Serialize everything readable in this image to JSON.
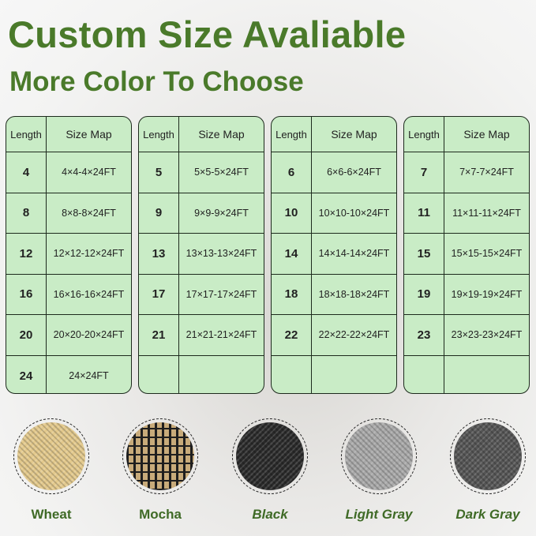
{
  "header": {
    "title": "Custom Size Avaliable",
    "subtitle": "More Color To Choose"
  },
  "table_headers": {
    "length": "Length",
    "size_map": "Size Map"
  },
  "tables": [
    {
      "rows": [
        {
          "length": "4",
          "size": "4×4-4×24FT"
        },
        {
          "length": "8",
          "size": "8×8-8×24FT"
        },
        {
          "length": "12",
          "size": "12×12-12×24FT"
        },
        {
          "length": "16",
          "size": "16×16-16×24FT"
        },
        {
          "length": "20",
          "size": "20×20-20×24FT"
        },
        {
          "length": "24",
          "size": "24×24FT"
        }
      ]
    },
    {
      "rows": [
        {
          "length": "5",
          "size": "5×5-5×24FT"
        },
        {
          "length": "9",
          "size": "9×9-9×24FT"
        },
        {
          "length": "13",
          "size": "13×13-13×24FT"
        },
        {
          "length": "17",
          "size": "17×17-17×24FT"
        },
        {
          "length": "21",
          "size": "21×21-21×24FT"
        },
        {
          "length": "",
          "size": ""
        }
      ]
    },
    {
      "rows": [
        {
          "length": "6",
          "size": "6×6-6×24FT"
        },
        {
          "length": "10",
          "size": "10×10-10×24FT"
        },
        {
          "length": "14",
          "size": "14×14-14×24FT"
        },
        {
          "length": "18",
          "size": "18×18-18×24FT"
        },
        {
          "length": "22",
          "size": "22×22-22×24FT"
        },
        {
          "length": "",
          "size": ""
        }
      ]
    },
    {
      "rows": [
        {
          "length": "7",
          "size": "7×7-7×24FT"
        },
        {
          "length": "11",
          "size": "11×11-11×24FT"
        },
        {
          "length": "15",
          "size": "15×15-15×24FT"
        },
        {
          "length": "19",
          "size": "19×19-19×24FT"
        },
        {
          "length": "23",
          "size": "23×23-23×24FT"
        },
        {
          "length": "",
          "size": ""
        }
      ]
    }
  ],
  "colors": [
    {
      "name": "Wheat",
      "swatch": "#e3c98c",
      "italic": false
    },
    {
      "name": "Mocha",
      "swatch": "#8a7452",
      "italic": false
    },
    {
      "name": "Black",
      "swatch": "#2a2a2a",
      "italic": true
    },
    {
      "name": "Light Gray",
      "swatch": "#a9a9a9",
      "italic": true
    },
    {
      "name": "Dark Gray",
      "swatch": "#555555",
      "italic": true
    }
  ],
  "theme": {
    "title_color": "#4a7a2a",
    "table_bg": "#c9ecc6"
  }
}
